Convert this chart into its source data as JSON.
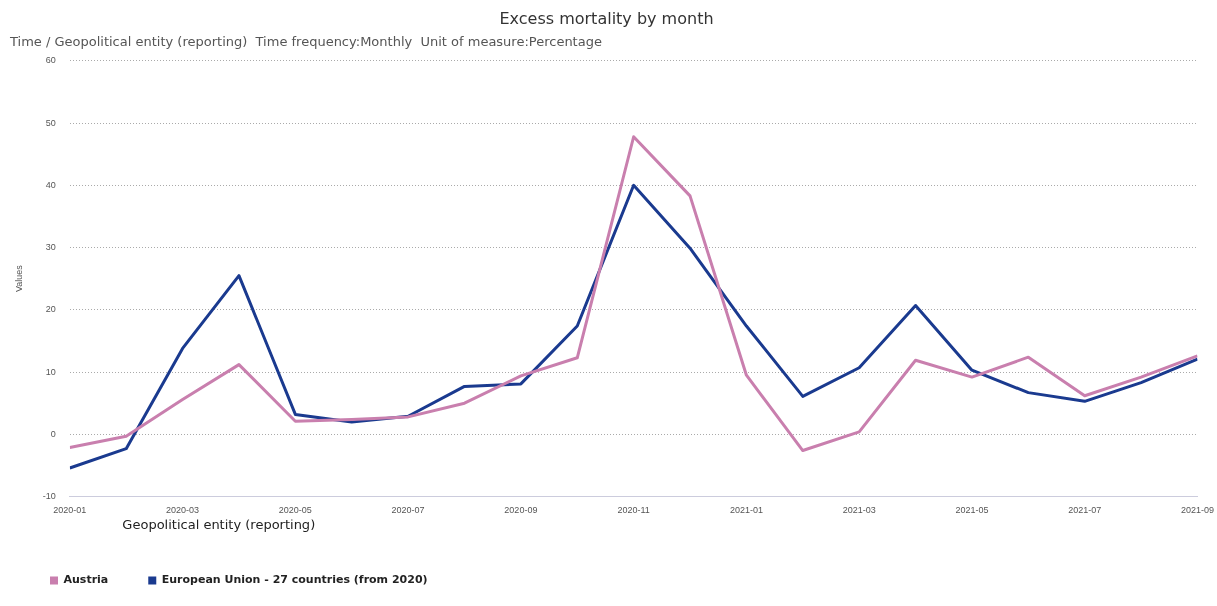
{
  "chart_data": {
    "type": "line",
    "title": "Excess mortality by month",
    "subtitle": "Time / Geopolitical entity (reporting)  Time frequency:Monthly  Unit of measure:Percentage",
    "ylabel": "Values",
    "legend_title": "Geopolitical entity (reporting)",
    "x": [
      "2020-01",
      "2020-02",
      "2020-03",
      "2020-04",
      "2020-05",
      "2020-06",
      "2020-07",
      "2020-08",
      "2020-09",
      "2020-10",
      "2020-11",
      "2020-12",
      "2021-01",
      "2021-02",
      "2021-03",
      "2021-04",
      "2021-05",
      "2021-06",
      "2021-07",
      "2021-08",
      "2021-09"
    ],
    "series": [
      {
        "name": "Austria",
        "color": "#c97fae",
        "values": [
          -2.1,
          -0.3,
          5.6,
          11.2,
          2.1,
          2.4,
          2.8,
          5.0,
          9.4,
          12.3,
          47.8,
          38.3,
          9.5,
          -2.6,
          0.4,
          11.9,
          9.2,
          12.4,
          6.2,
          9.2,
          12.6
        ]
      },
      {
        "name": "European Union - 27 countries (from 2020)",
        "color": "#1a3a8f",
        "values": [
          -5.4,
          -2.3,
          13.8,
          25.5,
          3.2,
          2.0,
          2.9,
          7.7,
          8.1,
          17.4,
          40.0,
          29.9,
          17.4,
          6.1,
          10.7,
          20.7,
          10.3,
          6.7,
          5.3,
          8.3,
          12.1
        ]
      }
    ],
    "xlim": [
      "2020-01",
      "2021-09"
    ],
    "xticks": [
      "2020-01",
      "2020-03",
      "2020-05",
      "2020-07",
      "2020-09",
      "2020-11",
      "2021-01",
      "2021-03",
      "2021-05",
      "2021-07",
      "2021-09"
    ],
    "ylim": [
      -10,
      60
    ],
    "yticks": [
      -10,
      0,
      10,
      20,
      30,
      40,
      50,
      60
    ],
    "grid": "y",
    "legend": "bottom left",
    "marker": "none",
    "line_style": "solid"
  }
}
